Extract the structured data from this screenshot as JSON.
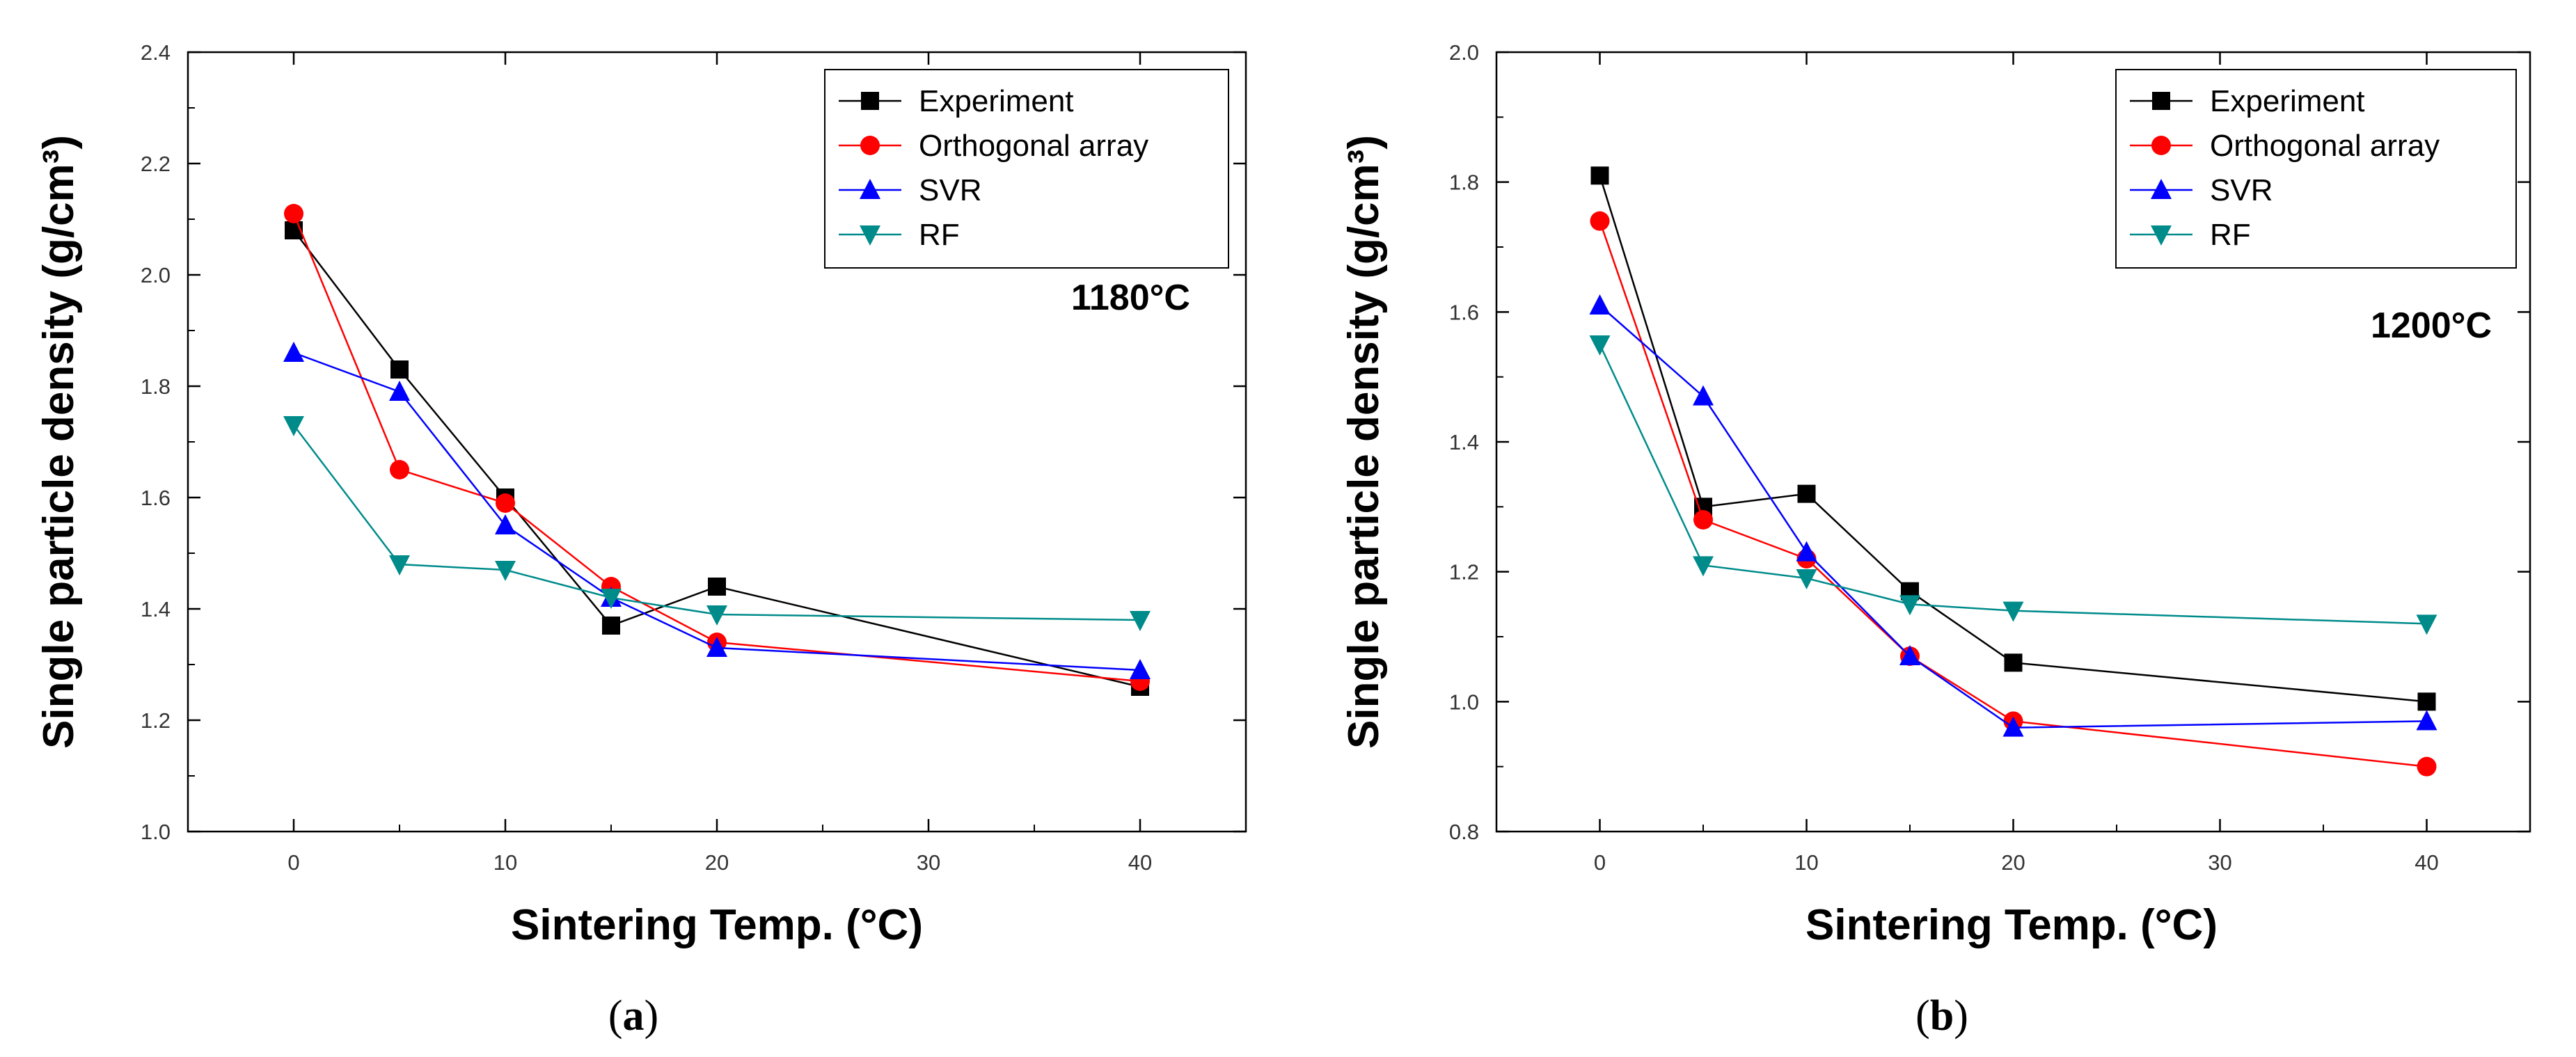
{
  "chart_data": [
    {
      "type": "line",
      "panel_label": "(a)",
      "panel_letter": "a",
      "annotation": "1180°C",
      "xlabel": "Sintering Temp. (°C)",
      "ylabel": "Single particle density (g/cm³)",
      "xlim": [
        -5,
        45
      ],
      "ylim": [
        1.0,
        2.4
      ],
      "x_ticks": [
        0,
        10,
        20,
        30,
        40
      ],
      "y_ticks": [
        1.0,
        1.2,
        1.4,
        1.6,
        1.8,
        2.0,
        2.2,
        2.4
      ],
      "x_tick_labels": [
        "0",
        "10",
        "20",
        "30",
        "40"
      ],
      "y_tick_labels": [
        "1.0",
        "1.2",
        "1.4",
        "1.6",
        "1.8",
        "2.0",
        "2.2",
        "2.4"
      ],
      "legend_position": "top-right",
      "x": [
        0,
        5,
        10,
        15,
        20,
        40
      ],
      "series": [
        {
          "name": "Experiment",
          "color": "#000000",
          "marker": "square",
          "values": [
            2.08,
            1.83,
            1.6,
            1.37,
            1.44,
            1.26
          ]
        },
        {
          "name": "Orthogonal array",
          "color": "#ff0000",
          "marker": "circle",
          "values": [
            2.11,
            1.65,
            1.59,
            1.44,
            1.34,
            1.27
          ]
        },
        {
          "name": "SVR",
          "color": "#0000ff",
          "marker": "triangle-up",
          "values": [
            1.86,
            1.79,
            1.55,
            1.42,
            1.33,
            1.29
          ]
        },
        {
          "name": "RF",
          "color": "#008b8b",
          "marker": "triangle-down",
          "values": [
            1.73,
            1.48,
            1.47,
            1.42,
            1.39,
            1.38
          ]
        }
      ]
    },
    {
      "type": "line",
      "panel_label": "(b)",
      "panel_letter": "b",
      "annotation": "1200°C",
      "xlabel": "Sintering Temp. (°C)",
      "ylabel": "Single particle density (g/cm³)",
      "xlim": [
        -5,
        45
      ],
      "ylim": [
        0.8,
        2.0
      ],
      "x_ticks": [
        0,
        10,
        20,
        30,
        40
      ],
      "y_ticks": [
        0.8,
        1.0,
        1.2,
        1.4,
        1.6,
        1.8,
        2.0
      ],
      "x_tick_labels": [
        "0",
        "10",
        "20",
        "30",
        "40"
      ],
      "y_tick_labels": [
        "0.8",
        "1.0",
        "1.2",
        "1.4",
        "1.6",
        "1.8",
        "2.0"
      ],
      "legend_position": "top-right",
      "x": [
        0,
        5,
        10,
        15,
        20,
        40
      ],
      "series": [
        {
          "name": "Experiment",
          "color": "#000000",
          "marker": "square",
          "values": [
            1.81,
            1.3,
            1.32,
            1.17,
            1.06,
            1.0
          ]
        },
        {
          "name": "Orthogonal array",
          "color": "#ff0000",
          "marker": "circle",
          "values": [
            1.74,
            1.28,
            1.22,
            1.07,
            0.97,
            0.9
          ]
        },
        {
          "name": "SVR",
          "color": "#0000ff",
          "marker": "triangle-up",
          "values": [
            1.61,
            1.47,
            1.23,
            1.07,
            0.96,
            0.97
          ]
        },
        {
          "name": "RF",
          "color": "#008b8b",
          "marker": "triangle-down",
          "values": [
            1.55,
            1.21,
            1.19,
            1.15,
            1.14,
            1.12
          ]
        }
      ]
    }
  ]
}
